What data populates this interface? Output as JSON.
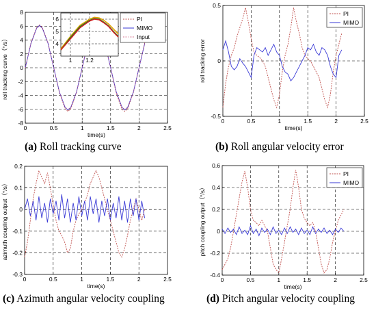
{
  "captions": [
    {
      "letter": "(a)",
      "text": "Roll tracking curve"
    },
    {
      "letter": "(b)",
      "text": "Roll angular velocity error"
    },
    {
      "letter": "(c)",
      "text": "Azimuth angular velocity coupling"
    },
    {
      "letter": "(d)",
      "text": "Pitch angular velocity coupling"
    }
  ],
  "colors": {
    "PI": "#c0504d",
    "MIMO": "#3a3ad6",
    "Input": "#d06080",
    "zoomMIMO": "#1f7a1f",
    "zoomPI": "#e0a000",
    "zoomInput": "#d02020"
  },
  "chart_data": [
    {
      "type": "line",
      "xlabel": "time(s)",
      "ylabel": "roll tracking curve（°/s）",
      "xlim": [
        0,
        2.5
      ],
      "ylim": [
        -8,
        8
      ],
      "xticks": [
        "0",
        "0.5",
        "1",
        "1.5",
        "2",
        "2.5"
      ],
      "yticks": [
        "-8",
        "-6",
        "-4",
        "-2",
        "0",
        "2",
        "4",
        "6",
        "8"
      ],
      "grid": "dashed",
      "legend": "top-right",
      "series": [
        {
          "name": "PI",
          "x": [
            0,
            0.1,
            0.2,
            0.25,
            0.3,
            0.4,
            0.5,
            0.6,
            0.7,
            0.75,
            0.8,
            0.9,
            1.0,
            1.1,
            1.2,
            1.25,
            1.3,
            1.4,
            1.5,
            1.6,
            1.7,
            1.75,
            1.8,
            1.9,
            2.0,
            2.1
          ],
          "y": [
            0,
            3.6,
            5.8,
            6.2,
            5.8,
            3.6,
            0,
            -3.6,
            -5.9,
            -6.3,
            -5.9,
            -3.6,
            0,
            3.7,
            5.9,
            6.3,
            5.9,
            3.6,
            0,
            -3.7,
            -6.0,
            -6.3,
            -5.9,
            -3.6,
            0,
            3.6
          ]
        },
        {
          "name": "MIMO",
          "x": [
            0,
            0.1,
            0.2,
            0.25,
            0.3,
            0.4,
            0.5,
            0.6,
            0.7,
            0.75,
            0.8,
            0.9,
            1.0,
            1.1,
            1.2,
            1.25,
            1.3,
            1.4,
            1.5,
            1.6,
            1.7,
            1.75,
            1.8,
            1.9,
            2.0,
            2.1
          ],
          "y": [
            0,
            3.5,
            5.7,
            6.1,
            5.7,
            3.5,
            0,
            -3.5,
            -5.7,
            -6.1,
            -5.7,
            -3.5,
            0,
            3.5,
            5.7,
            6.1,
            5.7,
            3.5,
            0,
            -3.5,
            -5.7,
            -6.1,
            -5.7,
            -3.5,
            0,
            3.5
          ]
        },
        {
          "name": "Input",
          "x": [
            0,
            0.1,
            0.2,
            0.25,
            0.3,
            0.4,
            0.5,
            0.6,
            0.7,
            0.75,
            0.8,
            0.9,
            1.0,
            1.1,
            1.2,
            1.25,
            1.3,
            1.4,
            1.5,
            1.6,
            1.7,
            1.75,
            1.8,
            1.9,
            2.0,
            2.1
          ],
          "y": [
            0,
            3.5,
            5.7,
            6.0,
            5.7,
            3.5,
            0,
            -3.5,
            -5.7,
            -6.0,
            -5.7,
            -3.5,
            0,
            3.5,
            5.7,
            6.0,
            5.7,
            3.5,
            0,
            -3.5,
            -5.7,
            -6.0,
            -5.7,
            -3.5,
            0,
            3.5
          ]
        }
      ],
      "inset": {
        "xlim": [
          0.9,
          1.5
        ],
        "ylim": [
          3,
          6.5
        ],
        "xticks": [
          "1",
          "1.2"
        ],
        "yticks": [
          "4",
          "5",
          "6"
        ],
        "series": [
          {
            "name": "PI",
            "x": [
              0.9,
              1.0,
              1.1,
              1.2,
              1.25,
              1.3,
              1.35,
              1.4,
              1.45,
              1.5
            ],
            "y": [
              3.6,
              4.6,
              5.5,
              6.0,
              6.15,
              6.1,
              5.9,
              5.6,
              5.2,
              4.8
            ]
          },
          {
            "name": "MIMO",
            "x": [
              0.9,
              1.0,
              1.1,
              1.2,
              1.25,
              1.3,
              1.35,
              1.4,
              1.45,
              1.5
            ],
            "y": [
              3.5,
              4.5,
              5.4,
              5.9,
              6.05,
              6.0,
              5.75,
              5.45,
              5.0,
              4.6
            ]
          },
          {
            "name": "Input",
            "x": [
              0.9,
              1.0,
              1.1,
              1.2,
              1.25,
              1.3,
              1.35,
              1.4,
              1.45,
              1.5
            ],
            "y": [
              3.5,
              4.4,
              5.3,
              5.85,
              6.0,
              5.95,
              5.7,
              5.4,
              4.95,
              4.55
            ]
          }
        ]
      }
    },
    {
      "type": "line",
      "xlabel": "time(s)",
      "ylabel": "roll tracking error",
      "xlim": [
        0,
        2.5
      ],
      "ylim": [
        -0.5,
        0.5
      ],
      "xticks": [
        "0",
        "0.5",
        "1",
        "1.5",
        "2",
        "2.5"
      ],
      "yticks": [
        "-0.5",
        "0",
        "0.5"
      ],
      "grid": "dashed",
      "legend": "top-right",
      "series": [
        {
          "name": "PI",
          "x": [
            0,
            0.05,
            0.1,
            0.15,
            0.2,
            0.25,
            0.3,
            0.35,
            0.4,
            0.45,
            0.5,
            0.55,
            0.6,
            0.65,
            0.7,
            0.75,
            0.8,
            0.85,
            0.9,
            0.95,
            1.0,
            1.05,
            1.1,
            1.15,
            1.2,
            1.25,
            1.3,
            1.35,
            1.4,
            1.45,
            1.5,
            1.55,
            1.6,
            1.65,
            1.7,
            1.75,
            1.8,
            1.85,
            1.9,
            1.95,
            2.0,
            2.05,
            2.1
          ],
          "y": [
            -0.42,
            -0.2,
            -0.05,
            0.05,
            0.12,
            0.22,
            0.3,
            0.38,
            0.48,
            0.35,
            0.2,
            0.08,
            0.05,
            0.03,
            0.0,
            -0.05,
            -0.15,
            -0.25,
            -0.35,
            -0.42,
            -0.3,
            -0.1,
            0.05,
            0.15,
            0.3,
            0.48,
            0.35,
            0.25,
            0.12,
            0.05,
            0.02,
            0.0,
            -0.05,
            -0.1,
            -0.15,
            -0.25,
            -0.35,
            -0.42,
            -0.3,
            -0.1,
            0.05,
            0.15,
            0.25
          ]
        },
        {
          "name": "MIMO",
          "x": [
            0,
            0.05,
            0.1,
            0.15,
            0.2,
            0.25,
            0.3,
            0.35,
            0.4,
            0.45,
            0.5,
            0.55,
            0.6,
            0.65,
            0.7,
            0.75,
            0.8,
            0.85,
            0.9,
            0.95,
            1.0,
            1.05,
            1.1,
            1.15,
            1.2,
            1.25,
            1.3,
            1.35,
            1.4,
            1.45,
            1.5,
            1.55,
            1.6,
            1.65,
            1.7,
            1.75,
            1.8,
            1.85,
            1.9,
            1.95,
            2.0,
            2.05,
            2.1
          ],
          "y": [
            0.1,
            0.18,
            0.08,
            -0.05,
            -0.08,
            -0.05,
            0.02,
            -0.02,
            -0.05,
            -0.1,
            -0.15,
            0.05,
            0.12,
            0.1,
            0.08,
            0.12,
            0.05,
            0.1,
            0.15,
            0.08,
            0.05,
            -0.05,
            -0.1,
            -0.12,
            -0.18,
            -0.15,
            -0.1,
            -0.05,
            0.0,
            0.05,
            0.12,
            0.1,
            0.15,
            0.08,
            0.05,
            0.12,
            0.1,
            0.05,
            -0.05,
            -0.12,
            -0.15,
            0.05,
            0.1
          ]
        }
      ]
    },
    {
      "type": "line",
      "xlabel": "time(s)",
      "ylabel": "azimuth coupling output（°/s）",
      "xlim": [
        0,
        2.5
      ],
      "ylim": [
        -0.3,
        0.2
      ],
      "xticks": [
        "0",
        "0.5",
        "1",
        "1.5",
        "2",
        "2.5"
      ],
      "yticks": [
        "-0.3",
        "-0.2",
        "-0.1",
        "0",
        "0.1",
        "0.2"
      ],
      "grid": "dashed",
      "legend": "top-right",
      "series": [
        {
          "name": "PI",
          "x": [
            0,
            0.05,
            0.1,
            0.15,
            0.2,
            0.25,
            0.3,
            0.35,
            0.4,
            0.45,
            0.5,
            0.55,
            0.6,
            0.65,
            0.7,
            0.75,
            0.8,
            0.85,
            0.9,
            0.95,
            1.0,
            1.05,
            1.1,
            1.15,
            1.2,
            1.25,
            1.3,
            1.35,
            1.4,
            1.45,
            1.5,
            1.55,
            1.6,
            1.65,
            1.7,
            1.75,
            1.8,
            1.85,
            1.9,
            1.95,
            2.0,
            2.05,
            2.1
          ],
          "y": [
            -0.22,
            -0.15,
            -0.05,
            0.05,
            0.12,
            0.18,
            0.15,
            0.12,
            0.17,
            0.1,
            0.02,
            -0.05,
            -0.1,
            -0.12,
            -0.15,
            -0.2,
            -0.18,
            -0.1,
            -0.05,
            -0.02,
            0.0,
            0.03,
            0.07,
            0.12,
            0.15,
            0.18,
            0.15,
            0.1,
            0.05,
            0.0,
            -0.05,
            -0.1,
            -0.15,
            -0.2,
            -0.22,
            -0.18,
            -0.12,
            -0.05,
            0.0,
            0.05,
            0.0,
            -0.05,
            0.0
          ]
        },
        {
          "name": "MIMO",
          "x": [
            0,
            0.05,
            0.1,
            0.15,
            0.2,
            0.25,
            0.3,
            0.35,
            0.4,
            0.45,
            0.5,
            0.55,
            0.6,
            0.65,
            0.7,
            0.75,
            0.8,
            0.85,
            0.9,
            0.95,
            1.0,
            1.05,
            1.1,
            1.15,
            1.2,
            1.25,
            1.3,
            1.35,
            1.4,
            1.45,
            1.5,
            1.55,
            1.6,
            1.65,
            1.7,
            1.75,
            1.8,
            1.85,
            1.9,
            1.95,
            2.0,
            2.05,
            2.1
          ],
          "y": [
            0.0,
            0.05,
            -0.03,
            0.04,
            -0.05,
            0.06,
            -0.04,
            0.03,
            -0.06,
            0.05,
            -0.02,
            0.04,
            -0.05,
            0.07,
            -0.04,
            0.05,
            -0.06,
            0.03,
            -0.05,
            0.06,
            -0.03,
            0.04,
            -0.05,
            0.06,
            -0.02,
            0.05,
            -0.06,
            0.04,
            -0.03,
            0.05,
            -0.05,
            0.03,
            -0.04,
            0.06,
            -0.05,
            0.04,
            -0.06,
            0.05,
            -0.03,
            0.05,
            -0.05,
            0.04,
            -0.04
          ]
        }
      ]
    },
    {
      "type": "line",
      "xlabel": "time(s)",
      "ylabel": "pitch coupling output（°/s）",
      "xlim": [
        0,
        2.5
      ],
      "ylim": [
        -0.4,
        0.6
      ],
      "xticks": [
        "0",
        "0.5",
        "1",
        "1.5",
        "2",
        "2.5"
      ],
      "yticks": [
        "-0.4",
        "-0.2",
        "0",
        "0.2",
        "0.4",
        "0.6"
      ],
      "grid": "dashed",
      "legend": "top-right",
      "series": [
        {
          "name": "PI",
          "x": [
            0,
            0.05,
            0.1,
            0.15,
            0.2,
            0.25,
            0.3,
            0.35,
            0.4,
            0.45,
            0.5,
            0.55,
            0.6,
            0.65,
            0.7,
            0.75,
            0.8,
            0.85,
            0.9,
            0.95,
            1.0,
            1.05,
            1.1,
            1.15,
            1.2,
            1.25,
            1.3,
            1.35,
            1.4,
            1.45,
            1.5,
            1.55,
            1.6,
            1.65,
            1.7,
            1.75,
            1.8,
            1.85,
            1.9,
            1.95,
            2.0,
            2.05,
            2.1,
            2.15
          ],
          "y": [
            -0.35,
            -0.3,
            -0.25,
            -0.15,
            0.0,
            0.15,
            0.3,
            0.45,
            0.55,
            0.4,
            0.2,
            0.1,
            0.08,
            0.05,
            0.1,
            0.05,
            0.0,
            -0.15,
            -0.3,
            -0.35,
            -0.38,
            -0.25,
            -0.1,
            0.05,
            0.2,
            0.4,
            0.56,
            0.4,
            0.2,
            0.12,
            0.08,
            0.05,
            0.08,
            0.0,
            -0.15,
            -0.3,
            -0.38,
            -0.35,
            -0.25,
            -0.1,
            0.0,
            0.1,
            0.15,
            0.2
          ]
        },
        {
          "name": "MIMO",
          "x": [
            0,
            0.05,
            0.1,
            0.15,
            0.2,
            0.25,
            0.3,
            0.35,
            0.4,
            0.45,
            0.5,
            0.55,
            0.6,
            0.65,
            0.7,
            0.75,
            0.8,
            0.85,
            0.9,
            0.95,
            1.0,
            1.05,
            1.1,
            1.15,
            1.2,
            1.25,
            1.3,
            1.35,
            1.4,
            1.45,
            1.5,
            1.55,
            1.6,
            1.65,
            1.7,
            1.75,
            1.8,
            1.85,
            1.9,
            1.95,
            2.0,
            2.05,
            2.1,
            2.15
          ],
          "y": [
            0.02,
            -0.02,
            0.03,
            -0.01,
            0.02,
            -0.03,
            0.04,
            -0.02,
            0.01,
            -0.03,
            0.05,
            -0.02,
            0.02,
            -0.04,
            0.03,
            -0.01,
            0.02,
            -0.03,
            0.04,
            -0.02,
            0.01,
            -0.03,
            0.03,
            -0.02,
            0.04,
            -0.01,
            0.02,
            -0.03,
            0.03,
            -0.02,
            0.01,
            -0.03,
            0.04,
            -0.02,
            0.02,
            -0.01,
            0.03,
            -0.02,
            0.01,
            -0.03,
            0.02,
            -0.01,
            0.03,
            0.0
          ]
        }
      ]
    }
  ]
}
